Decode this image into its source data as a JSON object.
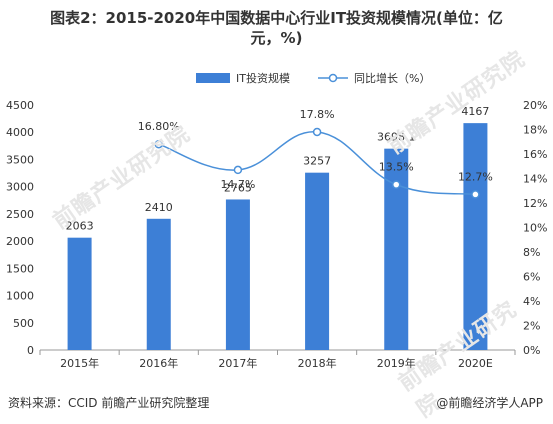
{
  "title_line1": "图表2：2015-2020年中国数据中心行业IT投资规模情况(单位：亿",
  "title_line2": "元，%)",
  "source": "资料来源：CCID 前瞻产业研究院整理",
  "credit": "@前瞻经济学人APP",
  "watermark": "前瞻产业研究院",
  "colors": {
    "bar": "#3d7fd6",
    "line": "#4a90d9",
    "axis": "#999999",
    "grid": "#e6e6e6"
  },
  "chart_data": {
    "type": "bar",
    "categories": [
      "2015年",
      "2016年",
      "2017年",
      "2018年",
      "2019年",
      "2020E"
    ],
    "series": [
      {
        "name": "IT投资规模",
        "type": "bar",
        "axis": "left",
        "values": [
          2063,
          2410,
          2765,
          3257,
          3698.1,
          4167
        ],
        "labels": [
          "2063",
          "2410",
          "2765",
          "3257",
          "3698.1",
          "4167"
        ]
      },
      {
        "name": "同比增长（%）",
        "type": "line",
        "axis": "right",
        "values": [
          null,
          16.8,
          14.7,
          17.8,
          13.5,
          12.7
        ],
        "labels": [
          "",
          "16.80%",
          "14.7%",
          "17.8%",
          "13.5%",
          "12.7%"
        ]
      }
    ],
    "left_axis": {
      "min": 0,
      "max": 4500,
      "step": 500,
      "ticks": [
        "0",
        "500",
        "1000",
        "1500",
        "2000",
        "2500",
        "3000",
        "3500",
        "4000",
        "4500"
      ]
    },
    "right_axis": {
      "min": 0,
      "max": 20,
      "step": 2,
      "ticks": [
        "0%",
        "2%",
        "4%",
        "6%",
        "8%",
        "10%",
        "12%",
        "14%",
        "16%",
        "18%",
        "20%"
      ]
    },
    "legend_position": "top-center",
    "grid": true
  }
}
